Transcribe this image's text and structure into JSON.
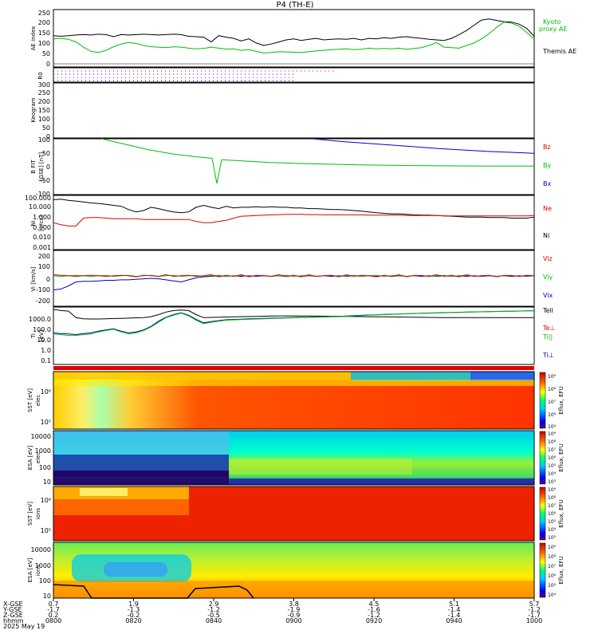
{
  "title": "P4 (TH-E)",
  "colors": {
    "black": "#000000",
    "red": "#e00000",
    "green": "#00c000",
    "blue": "#0000cc"
  },
  "chart_data": [
    {
      "type": "line",
      "ylabel": "AE index",
      "yticks": [
        "250",
        "200",
        "150",
        "100",
        "50",
        "0"
      ],
      "ylim": [
        -25,
        250
      ],
      "legend": [
        "Kyoto",
        "proxy AE",
        "Themis AE"
      ],
      "series": [
        {
          "name": "Themis AE",
          "color": "#000000",
          "values": [
            125,
            122,
            125,
            128,
            130,
            128,
            132,
            130,
            120,
            130,
            128,
            130,
            132,
            130,
            128,
            130,
            132,
            130,
            122,
            120,
            118,
            95,
            125,
            118,
            112,
            100,
            110,
            90,
            78,
            85,
            95,
            105,
            110,
            102,
            108,
            112,
            105,
            108,
            110,
            108,
            112,
            105,
            112,
            110,
            115,
            112,
            118,
            120,
            115,
            112,
            108,
            105,
            102,
            112,
            130,
            150,
            175,
            200,
            205,
            198,
            192,
            190,
            180,
            160,
            122
          ]
        },
        {
          "name": "Kyoto proxy AE",
          "color": "#00c000",
          "values": [
            110,
            112,
            108,
            95,
            70,
            50,
            45,
            55,
            72,
            85,
            92,
            88,
            78,
            72,
            70,
            68,
            72,
            70,
            65,
            62,
            64,
            70,
            65,
            60,
            62,
            55,
            58,
            50,
            42,
            45,
            48,
            47,
            46,
            45,
            48,
            52,
            55,
            58,
            60,
            62,
            58,
            60,
            65,
            62,
            64,
            62,
            65,
            60,
            64,
            68,
            78,
            92,
            70,
            68,
            65,
            78,
            90,
            110,
            135,
            165,
            190,
            185,
            170,
            140,
            110
          ]
        }
      ]
    },
    {
      "type": "scatter",
      "ylabel": "R0",
      "note": "dotted ROI flag rows"
    },
    {
      "type": "heatmap",
      "ylabel": "Keogram",
      "yticks": [
        "300",
        "250",
        "200",
        "150",
        "100",
        "50",
        "0"
      ],
      "ylim": [
        0,
        310
      ]
    },
    {
      "type": "line",
      "ylabel": "B FIT [GSE] [nT]",
      "yticks": [
        "100",
        "50",
        "0",
        "-50",
        "-100"
      ],
      "ylim": [
        -100,
        100
      ],
      "legend": [
        "Bz",
        "By",
        "Bx"
      ],
      "series": [
        {
          "name": "By",
          "color": "#00c000",
          "x": [
            0.1,
            0.15,
            0.2,
            0.25,
            0.3,
            0.33,
            0.34,
            0.35,
            0.4,
            0.45,
            0.5,
            0.55,
            0.6,
            0.65,
            0.7,
            0.75,
            0.8,
            0.9,
            1.0
          ],
          "values": [
            100,
            80,
            60,
            45,
            35,
            30,
            -60,
            25,
            20,
            15,
            12,
            10,
            8,
            6,
            5,
            4,
            3,
            2,
            2
          ]
        },
        {
          "name": "Bx",
          "color": "#0000cc",
          "x": [
            0.54,
            0.6,
            0.7,
            0.8,
            0.9,
            1.0
          ],
          "values": [
            100,
            90,
            78,
            65,
            55,
            48
          ]
        }
      ]
    },
    {
      "type": "line",
      "ylabel": "Ni [1/cc]",
      "yticks": [
        "100.000",
        "10.000",
        "1.000",
        "0.100",
        "0.010",
        "0.001"
      ],
      "ylim": [
        0.001,
        100
      ],
      "scale": "log",
      "legend": [
        "Ne",
        "Ni"
      ],
      "series": [
        {
          "name": "Ni",
          "color": "#000000",
          "values": [
            40,
            45,
            35,
            30,
            25,
            20,
            18,
            15,
            12,
            10,
            5,
            3,
            4,
            8,
            6,
            4,
            3,
            2.5,
            3,
            8,
            12,
            8,
            6,
            10,
            7,
            8,
            8,
            9,
            8,
            9,
            8,
            8,
            7,
            7,
            6,
            6,
            5.5,
            5,
            5,
            4.5,
            4,
            3.5,
            3,
            2.5,
            2.2,
            2,
            2,
            1.8,
            1.6,
            1.5,
            1.5,
            1.4,
            1.3,
            1.2,
            1.1,
            1,
            1,
            1,
            0.9,
            0.9,
            0.9,
            0.8,
            0.8,
            0.8,
            1
          ]
        },
        {
          "name": "Ne",
          "color": "#e00000",
          "values": [
            0.3,
            0.2,
            0.15,
            0.15,
            0.8,
            0.9,
            0.9,
            0.8,
            0.7,
            0.7,
            0.7,
            0.7,
            0.6,
            0.6,
            0.6,
            0.6,
            0.6,
            0.6,
            0.6,
            0.4,
            0.3,
            0.3,
            0.4,
            0.5,
            0.8,
            1.2,
            1.3,
            1.4,
            1.5,
            1.6,
            1.7,
            1.8,
            1.8,
            1.8,
            1.7,
            1.7,
            1.6,
            1.6,
            1.6,
            1.6,
            1.6,
            1.6,
            1.5,
            1.5,
            1.5,
            1.5,
            1.5,
            1.4,
            1.4,
            1.4,
            1.4,
            1.4,
            1.3,
            1.3,
            1.3,
            1.3,
            1.3,
            1.3,
            1.3,
            1.3,
            1.3,
            1.3,
            1.3,
            1.3,
            1.4
          ]
        }
      ]
    },
    {
      "type": "line",
      "ylabel": "Vi [km/s]",
      "yticks": [
        "200",
        "100",
        "0",
        "-100",
        "-200"
      ],
      "ylim": [
        -300,
        250
      ],
      "legend": [
        "Viz",
        "Viy",
        "Vix"
      ],
      "series": [
        {
          "name": "Viz",
          "color": "#e00000",
          "values": [
            10,
            5,
            0,
            -5,
            0,
            5,
            0,
            -5,
            0,
            5,
            0,
            -10,
            5,
            0,
            -5,
            10,
            -5,
            0,
            5,
            -5,
            0,
            10,
            -10,
            5,
            -5,
            10,
            -10,
            5,
            0,
            -5,
            10,
            -5,
            5,
            -10,
            10,
            -5,
            0,
            5,
            -10,
            10,
            -5,
            5,
            0,
            -10,
            5,
            -5,
            10,
            -10,
            5,
            0,
            -5,
            10,
            -5,
            5,
            -10,
            10,
            -5,
            0,
            5,
            -10,
            5,
            0,
            -5,
            5,
            0
          ]
        },
        {
          "name": "Viy",
          "color": "#00c000",
          "values": [
            0,
            -5,
            0,
            5,
            0,
            -5,
            0,
            5,
            -5,
            0,
            5,
            -5,
            0,
            5,
            -5,
            0,
            5,
            -5,
            0,
            5,
            -5,
            0,
            5,
            -5,
            0,
            5,
            -5,
            0,
            5,
            -5,
            0,
            5,
            -5,
            0,
            5,
            -5,
            0,
            5,
            -5,
            0,
            5,
            -5,
            0,
            5,
            -5,
            0,
            5,
            -5,
            0,
            5,
            -5,
            0,
            5,
            -5,
            0,
            5,
            -5,
            0,
            5,
            -5,
            0,
            5,
            -5,
            0,
            0
          ]
        },
        {
          "name": "Vix",
          "color": "#0000cc",
          "values": [
            -140,
            -130,
            -100,
            -60,
            -55,
            -55,
            -50,
            -45,
            -45,
            -40,
            -40,
            -35,
            -30,
            -25,
            -30,
            -40,
            -50,
            -60,
            -40,
            -20,
            -10,
            -5,
            0,
            -5,
            0,
            -5,
            0,
            -5,
            0,
            -5,
            0,
            -5,
            0,
            -5,
            0,
            -5,
            0,
            -5,
            0,
            -5,
            0,
            -5,
            0,
            -5,
            0,
            -5,
            0,
            -5,
            0,
            -5,
            0,
            -5,
            0,
            -5,
            0,
            -5,
            0,
            -5,
            0,
            -5,
            0,
            -5,
            0,
            -5,
            0
          ]
        }
      ]
    },
    {
      "type": "line",
      "ylabel": "Ti [eV]",
      "yticks": [
        "1000.0",
        "100.0",
        "10.0",
        "1.0",
        "0.1"
      ],
      "ylim": [
        0.05,
        4000
      ],
      "scale": "log",
      "legend": [
        "Tell",
        "Te⊥",
        "Ti||",
        "Ti⊥"
      ],
      "series": [
        {
          "name": "Tell",
          "color": "#000000",
          "values": [
            2500,
            2000,
            1800,
            500,
            400,
            380,
            380,
            400,
            420,
            430,
            450,
            480,
            500,
            600,
            900,
            1500,
            2000,
            2200,
            2000,
            900,
            500,
            520,
            540,
            560,
            580,
            600,
            620,
            640,
            660,
            680,
            700,
            700,
            700,
            690,
            680,
            670,
            660,
            650,
            640,
            630,
            620,
            610,
            600,
            590,
            580,
            570,
            560,
            550,
            540,
            530,
            520,
            510,
            500,
            500,
            500,
            500,
            500,
            500,
            500,
            500,
            500,
            500,
            500,
            500,
            500
          ]
        },
        {
          "name": "Ti||",
          "color": "#00c000",
          "values": [
            20,
            18,
            15,
            15,
            18,
            20,
            30,
            40,
            50,
            30,
            20,
            25,
            40,
            80,
            200,
            500,
            800,
            1200,
            700,
            300,
            150,
            200,
            250,
            300,
            320,
            340,
            360,
            380,
            400,
            420,
            440,
            460,
            480,
            500,
            520,
            540,
            560,
            580,
            600,
            650,
            700,
            750,
            800,
            850,
            900,
            950,
            1000,
            1050,
            1100,
            1150,
            1200,
            1250,
            1300,
            1350,
            1400,
            1450,
            1500,
            1550,
            1600,
            1650,
            1700,
            1750,
            1800,
            1850,
            1900
          ]
        },
        {
          "name": "Ti⊥",
          "color": "#0000cc",
          "values": [
            25,
            22,
            20,
            18,
            22,
            25,
            35,
            45,
            55,
            35,
            25,
            30,
            45,
            90,
            250,
            550,
            900,
            1300,
            800,
            350,
            180,
            230,
            280,
            330,
            350,
            370,
            390,
            410,
            430,
            450,
            470,
            490,
            510,
            530,
            550,
            570,
            590,
            610,
            630,
            680,
            730,
            780,
            830,
            880,
            930,
            980,
            1030,
            1080,
            1130,
            1180,
            1230,
            1280,
            1330,
            1380,
            1430,
            1480,
            1530,
            1580,
            1630,
            1680,
            1730,
            1780,
            1830,
            1880,
            1930
          ]
        }
      ]
    },
    {
      "type": "heatmap",
      "ylabel": "SST [eV]",
      "sub": "elec",
      "yticks": [
        "10⁶",
        "10⁵"
      ],
      "colorbar": {
        "label": "Eflux, EFU",
        "ticks": [
          "10⁹",
          "10⁸",
          "10⁷",
          "10⁶",
          "10⁵"
        ]
      }
    },
    {
      "type": "heatmap",
      "ylabel": "ESA [eV]",
      "sub": "elec",
      "yticks": [
        "10000",
        "1000",
        "100",
        "10"
      ],
      "colorbar": {
        "label": "Eflux, EFU",
        "ticks": [
          "10⁹",
          "10⁸",
          "10⁷",
          "10⁶",
          "10⁵",
          "10⁴",
          "10³"
        ]
      }
    },
    {
      "type": "heatmap",
      "ylabel": "SST [eV]",
      "sub": "ions",
      "yticks": [
        "10⁶",
        "10⁵"
      ],
      "colorbar": {
        "label": "Eflux, EFU",
        "ticks": [
          "10⁹",
          "10⁸",
          "10⁷",
          "10⁶",
          "10⁵",
          "10⁴",
          "10³"
        ]
      }
    },
    {
      "type": "heatmap",
      "ylabel": "ESA [eV]",
      "sub": "ions",
      "yticks": [
        "10000",
        "1000",
        "100",
        "10"
      ],
      "colorbar": {
        "label": "Eflux, EFU",
        "ticks": [
          "10⁹",
          "10⁸",
          "10⁷",
          "10⁶",
          "10⁵",
          "10⁴"
        ]
      }
    }
  ],
  "footer": {
    "row_labels": [
      "X-GSE",
      "Y-GSE",
      "Z-GSE",
      "hhmm",
      "2025 May 19"
    ],
    "columns": [
      {
        "x": "0.7",
        "y": "-1.7",
        "z": "0.2",
        "t": "0800"
      },
      {
        "x": "1.9",
        "y": "-1.3",
        "z": "-0.2",
        "t": "0820"
      },
      {
        "x": "2.9",
        "y": "-1.2",
        "z": "-0.5",
        "t": "0840"
      },
      {
        "x": "3.8",
        "y": "-1.9",
        "z": "-0.9",
        "t": "0900"
      },
      {
        "x": "4.5",
        "y": "-1.6",
        "z": "-1.2",
        "t": "0920"
      },
      {
        "x": "5.1",
        "y": "-1.4",
        "z": "-1.4",
        "t": "0940"
      },
      {
        "x": "5.7",
        "y": "-1.2",
        "z": "-1.7",
        "t": "1000"
      }
    ]
  }
}
